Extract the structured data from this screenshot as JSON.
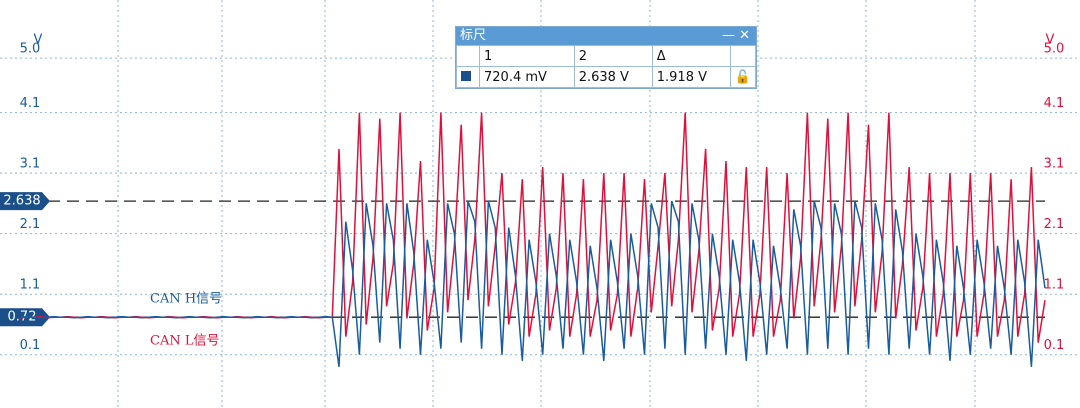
{
  "chart_data": {
    "type": "line",
    "y_label": "V",
    "y2_label": "V",
    "ylim": [
      -0.78,
      5.96
    ],
    "y2lim": [
      -0.78,
      5.96
    ],
    "yticks": [
      {
        "value": 5,
        "label": "5.0"
      },
      4.1,
      3.1,
      2.1,
      1.1,
      0.1
    ],
    "y2ticks": [
      {
        "value": 5,
        "label": "5.0"
      },
      4.1,
      3.1,
      2.1,
      1.1,
      0.1
    ],
    "grid": true,
    "cursors": [
      2.638,
      0.72
    ],
    "ruler": {
      "title": "标尺",
      "headers": [
        "1",
        "2",
        "Δ"
      ],
      "values": [
        "720.4 mV",
        "2.638 V",
        "1.918 V"
      ]
    },
    "series": [
      {
        "name": "CAN H信号",
        "color": "#1a5c9e",
        "values": [
          0.72,
          0.73,
          0.72,
          0.71,
          0.72,
          0.73,
          0.72,
          0.72,
          0.71,
          0.72,
          0.73,
          0.72,
          0.72,
          0.71,
          0.72,
          0.73,
          0.72,
          0.72,
          0.71,
          0.72,
          0.73,
          0.72,
          0.72,
          0.71,
          0.72,
          0.73,
          0.72,
          0.72,
          0.71,
          0.72,
          0.73,
          0.72,
          0.72,
          0.71,
          0.72,
          0.73,
          0.72,
          0.72,
          0.71,
          0.72,
          0.73,
          0.72,
          0.72,
          0.71,
          0.72,
          0.73,
          0.72,
          -0.1,
          2.3,
          1.5,
          0.1,
          2.6,
          1.9,
          0.3,
          2.6,
          2.0,
          0.2,
          2.6,
          1.8,
          0.1,
          2.0,
          1.3,
          0.2,
          2.6,
          2.1,
          0.3,
          2.64,
          2.3,
          0.2,
          2.64,
          2.2,
          0.1,
          2.2,
          1.4,
          0.0,
          2.0,
          1.3,
          0.1,
          2.1,
          1.4,
          0.2,
          2.0,
          1.3,
          0.1,
          1.9,
          1.2,
          0.0,
          2.0,
          1.3,
          0.2,
          2.1,
          1.4,
          0.1,
          2.6,
          2.2,
          0.2,
          2.64,
          2.3,
          0.1,
          2.6,
          2.0,
          0.2,
          2.1,
          1.4,
          0.1,
          2.0,
          1.3,
          0.0,
          2.0,
          1.3,
          0.1,
          1.9,
          1.2,
          0.2,
          2.5,
          1.9,
          0.1,
          2.64,
          2.2,
          0.2,
          2.6,
          2.1,
          0.1,
          2.64,
          2.2,
          0.2,
          2.6,
          2.0,
          0.1,
          2.5,
          1.8,
          0.2,
          2.1,
          1.4,
          0.1,
          2.0,
          1.3,
          0.0,
          1.9,
          1.2,
          0.1,
          2.0,
          1.3,
          0.2,
          1.9,
          1.2,
          0.1,
          2.0,
          1.3,
          -0.1,
          2.0,
          1.2
        ]
      },
      {
        "name": "CAN L信号",
        "color": "#e0103c",
        "axis": "y2",
        "values": [
          0.71,
          0.72,
          0.72,
          0.73,
          0.71,
          0.72,
          0.72,
          0.73,
          0.72,
          0.71,
          0.72,
          0.72,
          0.73,
          0.72,
          0.71,
          0.72,
          0.72,
          0.73,
          0.72,
          0.71,
          0.72,
          0.72,
          0.73,
          0.72,
          0.71,
          0.72,
          0.72,
          0.73,
          0.72,
          0.71,
          0.72,
          0.72,
          0.73,
          0.72,
          0.71,
          0.72,
          0.72,
          0.73,
          0.72,
          0.71,
          0.72,
          0.72,
          0.73,
          0.72,
          0.71,
          0.72,
          0.72,
          3.5,
          0.4,
          1.3,
          4.1,
          0.6,
          1.7,
          4.0,
          0.9,
          1.6,
          4.1,
          0.7,
          1.6,
          3.3,
          0.5,
          1.2,
          4.1,
          0.8,
          1.9,
          3.9,
          1.0,
          2.0,
          4.1,
          0.9,
          1.9,
          3.1,
          0.6,
          1.3,
          3.0,
          0.4,
          1.1,
          3.2,
          0.5,
          1.2,
          3.1,
          0.4,
          1.1,
          3.0,
          0.4,
          1.0,
          3.1,
          0.5,
          1.1,
          3.1,
          0.4,
          1.2,
          3.0,
          0.8,
          1.9,
          3.1,
          0.9,
          2.0,
          4.1,
          0.8,
          1.8,
          3.5,
          0.5,
          1.2,
          3.3,
          0.4,
          1.1,
          3.2,
          0.4,
          1.1,
          3.2,
          0.4,
          1.0,
          3.1,
          0.7,
          1.7,
          4.1,
          0.9,
          2.0,
          4.0,
          0.8,
          1.9,
          4.1,
          0.9,
          2.0,
          3.9,
          0.8,
          1.8,
          4.1,
          0.7,
          1.6,
          3.2,
          0.5,
          1.2,
          3.1,
          0.4,
          1.1,
          3.1,
          0.4,
          1.0,
          3.1,
          0.4,
          1.1,
          3.1,
          0.4,
          1.0,
          3.0,
          0.4,
          1.1,
          3.2,
          0.3,
          1.0
        ]
      }
    ]
  }
}
